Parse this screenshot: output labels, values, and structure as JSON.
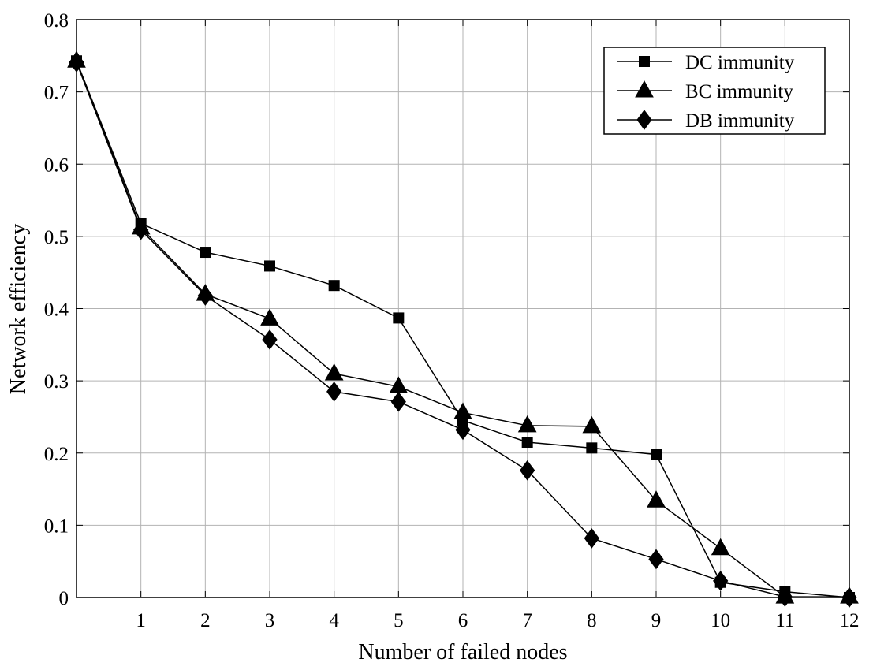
{
  "chart_data": {
    "type": "line",
    "xlabel": "Number of failed nodes",
    "ylabel": "Network efficiency",
    "xlim": [
      0,
      12
    ],
    "ylim": [
      0,
      0.8
    ],
    "x_ticks": [
      1,
      2,
      3,
      4,
      5,
      6,
      7,
      8,
      9,
      10,
      11,
      12
    ],
    "y_ticks": [
      0,
      0.1,
      0.2,
      0.3,
      0.4,
      0.5,
      0.6,
      0.7,
      0.8
    ],
    "grid": true,
    "legend_position": "top-right",
    "x": [
      0,
      1,
      2,
      3,
      4,
      5,
      6,
      7,
      8,
      9,
      10,
      11,
      12
    ],
    "series": [
      {
        "name": "DC immunity",
        "marker": "square",
        "values": [
          0.743,
          0.518,
          0.478,
          0.459,
          0.432,
          0.387,
          0.245,
          0.215,
          0.207,
          0.198,
          0.021,
          0.008,
          0.0
        ]
      },
      {
        "name": "BC immunity",
        "marker": "triangle",
        "values": [
          0.743,
          0.512,
          0.42,
          0.386,
          0.31,
          0.292,
          0.256,
          0.238,
          0.237,
          0.134,
          0.068,
          0.001,
          0.001
        ]
      },
      {
        "name": "DB immunity",
        "marker": "diamond",
        "values": [
          0.741,
          0.509,
          0.418,
          0.357,
          0.285,
          0.271,
          0.232,
          0.176,
          0.082,
          0.053,
          0.023,
          0.001,
          0.0
        ]
      }
    ]
  }
}
